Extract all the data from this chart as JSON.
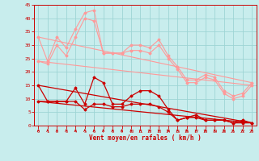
{
  "xlabel": "Vent moyen/en rafales ( km/h )",
  "xlim": [
    -0.5,
    23.5
  ],
  "ylim": [
    0,
    45
  ],
  "yticks": [
    0,
    5,
    10,
    15,
    20,
    25,
    30,
    35,
    40,
    45
  ],
  "xticks": [
    0,
    1,
    2,
    3,
    4,
    5,
    6,
    7,
    8,
    9,
    10,
    11,
    12,
    13,
    14,
    15,
    16,
    17,
    18,
    19,
    20,
    21,
    22,
    23
  ],
  "bg_color": "#c8eded",
  "grid_color": "#9dd4d4",
  "series": [
    {
      "x": [
        0,
        1,
        2,
        3,
        4,
        5,
        6,
        7,
        8,
        9,
        10,
        11,
        12,
        13,
        14,
        15,
        16,
        17,
        18,
        19,
        20,
        21,
        22,
        23
      ],
      "y": [
        33,
        24,
        33,
        29,
        36,
        42,
        43,
        27,
        27,
        27,
        30,
        30,
        29,
        32,
        26,
        22,
        17,
        17,
        19,
        18,
        13,
        11,
        12,
        16
      ],
      "color": "#ff9999",
      "lw": 0.8,
      "marker": "D",
      "ms": 1.5
    },
    {
      "x": [
        0,
        1,
        2,
        3,
        4,
        5,
        6,
        7,
        8,
        9,
        10,
        11,
        12,
        13,
        14,
        15,
        16,
        17,
        18,
        19,
        20,
        21,
        22,
        23
      ],
      "y": [
        24,
        23,
        30,
        26,
        33,
        40,
        39,
        27,
        27,
        27,
        28,
        28,
        27,
        30,
        25,
        21,
        16,
        16,
        18,
        17,
        12,
        10,
        11,
        15
      ],
      "color": "#ff9999",
      "lw": 0.8,
      "marker": "D",
      "ms": 1.5
    },
    {
      "x": [
        0,
        23
      ],
      "y": [
        33,
        16
      ],
      "color": "#ff9999",
      "lw": 0.8,
      "marker": null,
      "ms": 0
    },
    {
      "x": [
        0,
        23
      ],
      "y": [
        24,
        15
      ],
      "color": "#ff9999",
      "lw": 0.8,
      "marker": null,
      "ms": 0
    },
    {
      "x": [
        0,
        1,
        2,
        3,
        4,
        5,
        6,
        7,
        8,
        9,
        10,
        11,
        12,
        13,
        14,
        15,
        16,
        17,
        18,
        19,
        20,
        21,
        22,
        23
      ],
      "y": [
        15,
        9,
        9,
        9,
        14,
        8,
        18,
        16,
        8,
        8,
        11,
        13,
        13,
        11,
        6,
        2,
        3,
        4,
        2,
        2,
        2,
        1,
        2,
        1
      ],
      "color": "#cc0000",
      "lw": 0.9,
      "marker": "D",
      "ms": 1.5
    },
    {
      "x": [
        0,
        1,
        2,
        3,
        4,
        5,
        6,
        7,
        8,
        9,
        10,
        11,
        12,
        13,
        14,
        15,
        16,
        17,
        18,
        19,
        20,
        21,
        22,
        23
      ],
      "y": [
        9,
        9,
        9,
        9,
        9,
        6,
        8,
        8,
        7,
        7,
        8,
        8,
        8,
        7,
        5,
        2,
        3,
        3,
        2,
        2,
        2,
        1,
        1,
        1
      ],
      "color": "#cc0000",
      "lw": 0.9,
      "marker": "D",
      "ms": 1.5
    },
    {
      "x": [
        0,
        23
      ],
      "y": [
        15,
        1
      ],
      "color": "#cc0000",
      "lw": 0.9,
      "marker": null,
      "ms": 0
    },
    {
      "x": [
        0,
        23
      ],
      "y": [
        9,
        1
      ],
      "color": "#cc0000",
      "lw": 0.9,
      "marker": null,
      "ms": 0
    }
  ]
}
